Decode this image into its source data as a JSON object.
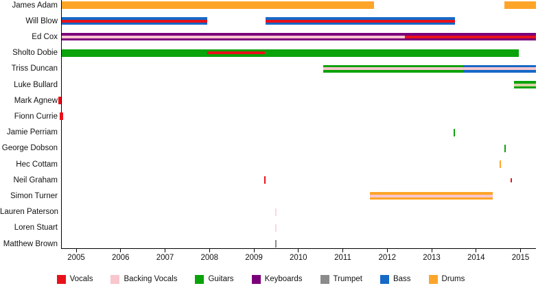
{
  "chart_data": {
    "type": "bar",
    "variant": "horizontal-timeline-gantt",
    "title": "",
    "xlabel": "",
    "ylabel": "",
    "grid": false,
    "x_axis": {
      "tick_years": [
        2005,
        2006,
        2007,
        2008,
        2009,
        2010,
        2011,
        2012,
        2013,
        2014,
        2015
      ],
      "range": [
        2004.67,
        2015.35
      ]
    },
    "members": [
      "James Adam",
      "Will Blow",
      "Ed Cox",
      "Sholto Dobie",
      "Triss Duncan",
      "Luke Bullard",
      "Mark Agnew",
      "Fionn Currie",
      "Jamie Perriam",
      "George Dobson",
      "Hec Cottam",
      "Neil Graham",
      "Simon Turner",
      "Lauren Paterson",
      "Loren Stuart",
      "Matthew Brown"
    ],
    "palette": {
      "vocals": "#e8111a",
      "backing_vocals": "#f9c6cd",
      "guitars": "#0aa30a",
      "keyboards": "#7b017b",
      "trumpet": "#8b8b8b",
      "bass": "#1569c7",
      "drums": "#fda529",
      "cream": "#dcd3a3"
    },
    "legend": [
      {
        "label": "Vocals",
        "color_key": "vocals"
      },
      {
        "label": "Backing Vocals",
        "color_key": "backing_vocals"
      },
      {
        "label": "Guitars",
        "color_key": "guitars"
      },
      {
        "label": "Keyboards",
        "color_key": "keyboards"
      },
      {
        "label": "Trumpet",
        "color_key": "trumpet"
      },
      {
        "label": "Bass",
        "color_key": "bass"
      },
      {
        "label": "Drums",
        "color_key": "drums"
      }
    ],
    "bars": [
      {
        "member": "James Adam",
        "instrument": "drums",
        "start": 2004.67,
        "end": 2011.7
      },
      {
        "member": "James Adam",
        "instrument": "drums",
        "start": 2014.64,
        "end": 2015.35
      },
      {
        "member": "Will Blow",
        "instrument": "bass",
        "start": 2004.67,
        "end": 2007.95,
        "stripe": {
          "instrument": "vocals"
        }
      },
      {
        "member": "Will Blow",
        "instrument": "bass",
        "start": 2009.26,
        "end": 2013.52,
        "stripe": {
          "instrument": "vocals"
        }
      },
      {
        "member": "Ed Cox",
        "instrument": "keyboards",
        "start": 2004.67,
        "end": 2012.4,
        "stripe": {
          "instrument": "backing_vocals"
        }
      },
      {
        "member": "Ed Cox",
        "instrument": "keyboards",
        "start": 2012.4,
        "end": 2015.35,
        "stripe": {
          "instrument": "vocals"
        }
      },
      {
        "member": "Sholto Dobie",
        "instrument": "guitars",
        "start": 2004.67,
        "end": 2014.96,
        "stripe": {
          "instrument": "vocals",
          "start": 2007.95,
          "end": 2009.25
        }
      },
      {
        "member": "Triss Duncan",
        "instrument": "guitars",
        "start": 2010.56,
        "end": 2013.71,
        "stripe": {
          "instrument": "backing_vocals"
        }
      },
      {
        "member": "Triss Duncan",
        "instrument": "bass",
        "start": 2013.71,
        "end": 2015.35,
        "stripe": {
          "instrument": "backing_vocals"
        }
      },
      {
        "member": "Luke Bullard",
        "instrument": "guitars",
        "start": 2014.85,
        "end": 2015.35,
        "stripe": {
          "instrument": "cream"
        }
      },
      {
        "member": "Simon Turner",
        "instrument": "drums",
        "start": 2011.61,
        "end": 2014.37,
        "stripe": {
          "instrument": "backing_vocals"
        }
      }
    ],
    "ticks": [
      {
        "member": "Mark Agnew",
        "instrument": "vocals",
        "year": 2004.63,
        "w": 4
      },
      {
        "member": "Fionn Currie",
        "instrument": "vocals",
        "year": 2004.67,
        "w": 5
      },
      {
        "member": "Jamie Perriam",
        "instrument": "guitars",
        "year": 2013.51,
        "w": 2
      },
      {
        "member": "George Dobson",
        "instrument": "guitars",
        "year": 2014.65,
        "w": 2.5
      },
      {
        "member": "Hec Cottam",
        "instrument": "drums",
        "year": 2014.54,
        "w": 2
      },
      {
        "member": "Neil Graham",
        "instrument": "vocals",
        "year": 2009.24,
        "w": 2
      },
      {
        "member": "Neil Graham",
        "instrument": "vocals",
        "year": 2014.79,
        "w": 2,
        "size": "small"
      },
      {
        "member": "Lauren Paterson",
        "instrument": "backing_vocals",
        "year": 2009.5,
        "w": 2,
        "faint": true
      },
      {
        "member": "Loren Stuart",
        "instrument": "backing_vocals",
        "year": 2009.5,
        "w": 2,
        "faint": true
      },
      {
        "member": "Matthew Brown",
        "instrument": "trumpet",
        "year": 2009.5,
        "w": 2
      }
    ]
  }
}
